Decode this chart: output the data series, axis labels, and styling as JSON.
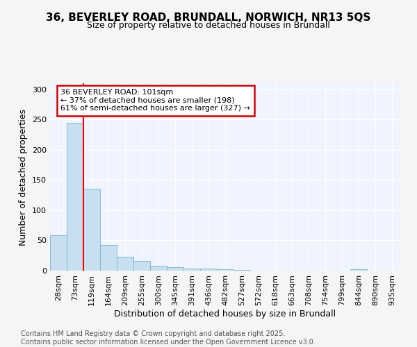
{
  "title_line1": "36, BEVERLEY ROAD, BRUNDALL, NORWICH, NR13 5QS",
  "title_line2": "Size of property relative to detached houses in Brundall",
  "xlabel": "Distribution of detached houses by size in Brundall",
  "ylabel": "Number of detached properties",
  "footer_line1": "Contains HM Land Registry data © Crown copyright and database right 2025.",
  "footer_line2": "Contains public sector information licensed under the Open Government Licence v3.0.",
  "bin_labels": [
    "28sqm",
    "73sqm",
    "119sqm",
    "164sqm",
    "209sqm",
    "255sqm",
    "300sqm",
    "345sqm",
    "391sqm",
    "436sqm",
    "482sqm",
    "527sqm",
    "572sqm",
    "618sqm",
    "663sqm",
    "708sqm",
    "754sqm",
    "799sqm",
    "844sqm",
    "890sqm",
    "935sqm"
  ],
  "bar_heights": [
    58,
    245,
    135,
    43,
    23,
    16,
    8,
    6,
    4,
    3,
    2,
    1,
    0,
    0,
    0,
    0,
    0,
    0,
    2,
    0,
    0
  ],
  "bar_color": "#c8dff0",
  "bar_edge_color": "#7ab0cc",
  "background_color": "#f5f5f5",
  "plot_bg_color": "#f0f4ff",
  "red_line_x": 1.5,
  "annotation_text": "36 BEVERLEY ROAD: 101sqm\n← 37% of detached houses are smaller (198)\n61% of semi-detached houses are larger (327) →",
  "annotation_box_facecolor": "#ffffff",
  "annotation_box_edgecolor": "#cc0000",
  "ylim": [
    0,
    310
  ],
  "yticks": [
    0,
    50,
    100,
    150,
    200,
    250,
    300
  ],
  "title1_fontsize": 11,
  "title2_fontsize": 9,
  "xlabel_fontsize": 9,
  "ylabel_fontsize": 9,
  "tick_fontsize": 8,
  "annot_fontsize": 8,
  "footer_fontsize": 7
}
